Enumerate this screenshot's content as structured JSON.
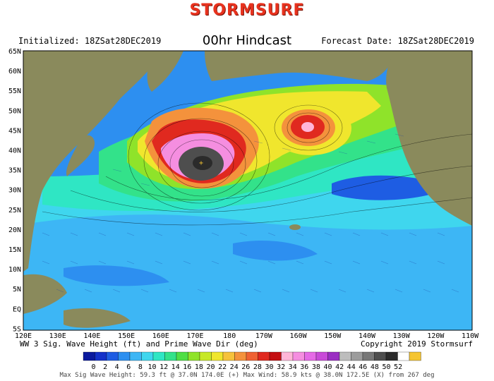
{
  "header": {
    "brand": "STORMSURF",
    "title": "00hr Hindcast",
    "initialized": "Initialized: 18ZSat28DEC2019",
    "forecast_date": "Forecast Date: 18ZSat28DEC2019"
  },
  "map": {
    "lat_labels": [
      "65N",
      "60N",
      "55N",
      "50N",
      "45N",
      "40N",
      "35N",
      "30N",
      "25N",
      "20N",
      "15N",
      "10N",
      "5N",
      "EQ",
      "5S"
    ],
    "lon_labels": [
      "120E",
      "130E",
      "140E",
      "150E",
      "160E",
      "170E",
      "180",
      "170W",
      "160W",
      "150W",
      "140W",
      "130W",
      "120W",
      "110W"
    ]
  },
  "footer": {
    "product": "WW 3 Sig. Wave Height (ft) and Prime Wave Dir (deg)",
    "copyright": "Copyright 2019 Stormsurf",
    "scale_values": [
      "0",
      "2",
      "4",
      "6",
      "8",
      "10",
      "12",
      "14",
      "16",
      "18",
      "20",
      "22",
      "24",
      "26",
      "28",
      "30",
      "32",
      "34",
      "36",
      "38",
      "40",
      "42",
      "44",
      "46",
      "48",
      "50",
      "52"
    ],
    "scale_colors": [
      "#0b1a9e",
      "#1431c9",
      "#1e5de3",
      "#2d8ff0",
      "#3db6f5",
      "#3fd6ee",
      "#2fe6c4",
      "#33e28a",
      "#4fde45",
      "#8fe32a",
      "#c7e827",
      "#f0e62d",
      "#f6c23b",
      "#f4923c",
      "#ef6233",
      "#e0291f",
      "#c40f12",
      "#ffb6d8",
      "#f58ee0",
      "#e56ae6",
      "#c84ad8",
      "#9a2fc2",
      "#bdbdbd",
      "#9c9c9c",
      "#777777",
      "#4e4e4e",
      "#2b2b2b",
      "#ffffff",
      "#f5c531"
    ],
    "max_note": "Max Sig Wave Height: 59.3 ft @ 37.0N 174.0E (+)   Max Wind: 58.9 kts @ 38.0N 172.5E (X) from 267 deg"
  }
}
